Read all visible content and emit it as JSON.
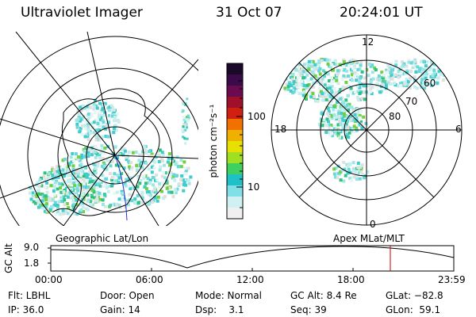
{
  "header": {
    "instrument": "Ultraviolet Imager",
    "date": "31 Oct 07",
    "time": "20:24:01 UT"
  },
  "geo_panel": {
    "caption": "Geographic Lat/Lon"
  },
  "mag_panel": {
    "caption": "Apex MLat/MLT",
    "mlt_labels": [
      "12",
      "18",
      "6",
      "0"
    ],
    "mlat_labels": [
      "60",
      "70",
      "80"
    ]
  },
  "colorbar": {
    "unit_label": "photon cm⁻²s⁻¹",
    "tick_labels": [
      "100",
      "10"
    ],
    "colors": [
      "#1a0a2a",
      "#3a0a4a",
      "#6a0a50",
      "#a0102a",
      "#d02010",
      "#f07000",
      "#f0b000",
      "#e8e000",
      "#a0e020",
      "#40d060",
      "#20c0c8",
      "#80e0e8",
      "#d0f0f4",
      "#f0f0f0"
    ]
  },
  "altitude_plot": {
    "ylabel": "GC Alt",
    "y_ticks": [
      "9.0",
      "1.8"
    ],
    "x_ticks": [
      "00:00",
      "06:00",
      "12:00",
      "18:00",
      "23:59"
    ],
    "current_time_marker_color": "#cc0000"
  },
  "info": {
    "flt": "Flt: LBHL",
    "door": "Door: Open",
    "mode": "Mode: Normal",
    "gcalt": "GC Alt: 8.4 Re",
    "glat": "GLat: −82.8",
    "ip": "IP: 36.0",
    "gain": "Gain: 14",
    "dsp": "Dsp:    3.1",
    "seq": "Seq: 39",
    "glon": "GLon:  59.1"
  }
}
